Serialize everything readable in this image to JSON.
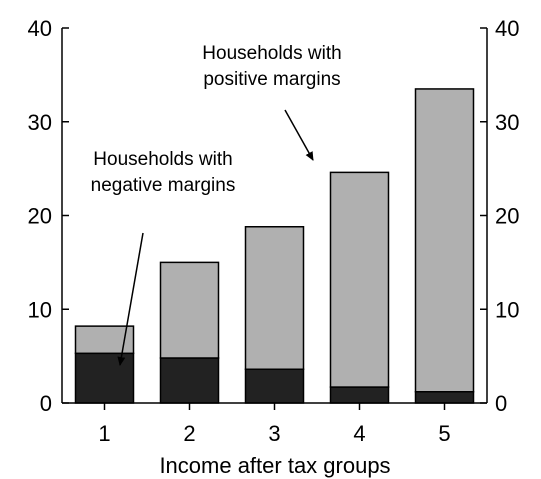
{
  "chart_data": {
    "type": "bar",
    "stacked": true,
    "categories": [
      "1",
      "2",
      "3",
      "4",
      "5"
    ],
    "series": [
      {
        "name": "",
        "values": [
          5.3,
          4.8,
          3.6,
          1.7,
          1.2
        ],
        "color": "#222222"
      },
      {
        "name": "",
        "values": [
          2.9,
          10.2,
          15.2,
          22.9,
          32.3
        ],
        "color": "#b0b0b0"
      }
    ],
    "totals": [
      8.2,
      15.0,
      18.8,
      24.6,
      33.5
    ],
    "title": "",
    "xlabel": "Income after tax groups",
    "ylabel": "",
    "ylim": [
      0,
      40
    ],
    "yticks": [
      0,
      10,
      20,
      30,
      40
    ],
    "secondary_y_axis": true,
    "grid": false,
    "annotations": [
      {
        "lines": [
          "Households with",
          "positive margins"
        ],
        "points_to_category": "4",
        "points_to_series": "upper"
      },
      {
        "lines": [
          "Households with",
          "negative margins"
        ],
        "points_to_category": "1",
        "points_to_series": "lower"
      }
    ]
  }
}
